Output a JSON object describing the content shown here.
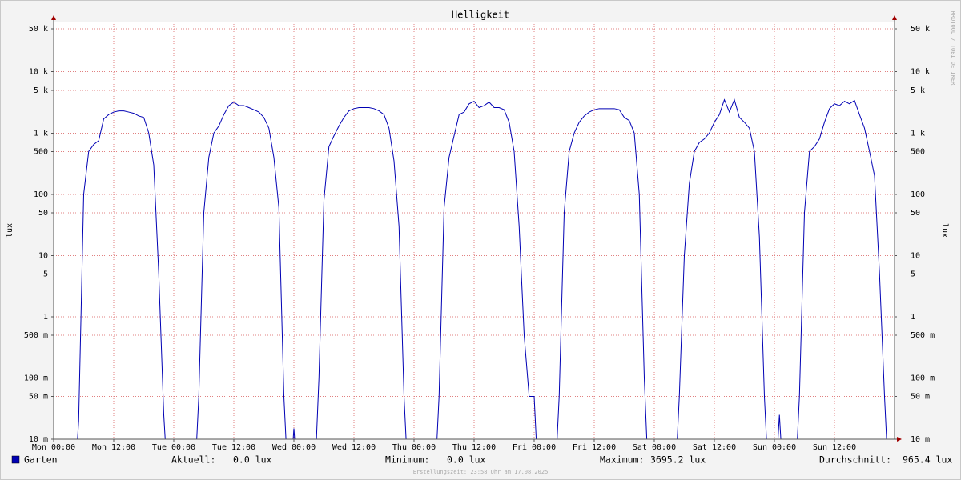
{
  "chart_data": {
    "type": "line",
    "title": "Helligkeit",
    "y_label": "lux",
    "y2_label": "lux",
    "log_scale": true,
    "grid": true,
    "ylim": [
      0.01,
      66000
    ],
    "yticks": [
      {
        "value": 50000,
        "label": "50 k"
      },
      {
        "value": 10000,
        "label": "10 k"
      },
      {
        "value": 5000,
        "label": "5 k"
      },
      {
        "value": 1000,
        "label": "1 k"
      },
      500,
      100,
      50,
      10,
      5,
      1,
      {
        "value": 0.5,
        "label": "500 m"
      },
      {
        "value": 0.1,
        "label": "100 m"
      },
      {
        "value": 0.05,
        "label": "50 m"
      },
      {
        "value": 0.01,
        "label": "10 m"
      }
    ],
    "xlim": [
      0,
      168
    ],
    "xticks": [
      {
        "value": 0,
        "label": "Mon 00:00"
      },
      {
        "value": 12,
        "label": "Mon 12:00"
      },
      {
        "value": 24,
        "label": "Tue 00:00"
      },
      {
        "value": 36,
        "label": "Tue 12:00"
      },
      {
        "value": 48,
        "label": "Wed 00:00"
      },
      {
        "value": 60,
        "label": "Wed 12:00"
      },
      {
        "value": 72,
        "label": "Thu 00:00"
      },
      {
        "value": 84,
        "label": "Thu 12:00"
      },
      {
        "value": 96,
        "label": "Fri 00:00"
      },
      {
        "value": 108,
        "label": "Fri 12:00"
      },
      {
        "value": 120,
        "label": "Sat 00:00"
      },
      {
        "value": 132,
        "label": "Sat 12:00"
      },
      {
        "value": 144,
        "label": "Sun 00:00"
      },
      {
        "value": 156,
        "label": "Sun 12:00"
      }
    ],
    "x": [
      0,
      1,
      2,
      3,
      4,
      5,
      6,
      7,
      8,
      9,
      10,
      11,
      12,
      13,
      14,
      15,
      16,
      17,
      18,
      19,
      20,
      21,
      22,
      23,
      24,
      25,
      26,
      27,
      28,
      29,
      30,
      31,
      32,
      33,
      34,
      35,
      36,
      37,
      38,
      39,
      40,
      41,
      42,
      43,
      44,
      45,
      46,
      47,
      48,
      49,
      50,
      51,
      52,
      53,
      54,
      55,
      56,
      57,
      58,
      59,
      60,
      61,
      62,
      63,
      64,
      65,
      66,
      67,
      68,
      69,
      70,
      71,
      72,
      73,
      74,
      75,
      76,
      77,
      78,
      79,
      80,
      81,
      82,
      83,
      84,
      85,
      86,
      87,
      88,
      89,
      90,
      91,
      92,
      93,
      94,
      95,
      96,
      97,
      98,
      99,
      100,
      101,
      102,
      103,
      104,
      105,
      106,
      107,
      108,
      109,
      110,
      111,
      112,
      113,
      114,
      115,
      116,
      117,
      118,
      119,
      120,
      121,
      122,
      123,
      124,
      125,
      126,
      127,
      128,
      129,
      130,
      131,
      132,
      133,
      134,
      135,
      136,
      137,
      138,
      139,
      140,
      141,
      142,
      143,
      144,
      145,
      146,
      147,
      148,
      149,
      150,
      151,
      152,
      153,
      154,
      155,
      156,
      157,
      158,
      159,
      160,
      161,
      162,
      163,
      164,
      165,
      166,
      167,
      168
    ],
    "series": [
      {
        "name": "Garten",
        "color": "#0000b4",
        "values": [
          0,
          0,
          0,
          0,
          0,
          0.02,
          100,
          500,
          650,
          750,
          1700,
          2000,
          2200,
          2300,
          2300,
          2200,
          2100,
          1900,
          1800,
          1000,
          300,
          5,
          0.025,
          0,
          0,
          0,
          0,
          0,
          0,
          0.05,
          50,
          400,
          1000,
          1300,
          2000,
          2800,
          3200,
          2800,
          2800,
          2600,
          2400,
          2200,
          1800,
          1200,
          400,
          60,
          0.05,
          0,
          0.015,
          0,
          0,
          0,
          0,
          0.1,
          80,
          600,
          900,
          1300,
          1800,
          2300,
          2500,
          2600,
          2600,
          2600,
          2500,
          2300,
          2000,
          1200,
          350,
          30,
          0.05,
          0,
          0,
          0,
          0,
          0,
          0,
          0.05,
          60,
          400,
          900,
          2000,
          2200,
          3000,
          3300,
          2600,
          2800,
          3200,
          2600,
          2600,
          2400,
          1500,
          500,
          30,
          0.5,
          0.05,
          0.05,
          0,
          0,
          0,
          0,
          0.05,
          50,
          500,
          1000,
          1500,
          1900,
          2200,
          2400,
          2500,
          2500,
          2500,
          2500,
          2400,
          1800,
          1600,
          1000,
          100,
          0.1,
          0,
          0,
          0,
          0,
          0,
          0,
          0.05,
          10,
          150,
          500,
          700,
          800,
          1000,
          1500,
          2000,
          3500,
          2200,
          3500,
          1800,
          1500,
          1200,
          500,
          20,
          0.05,
          0,
          0,
          0.025,
          0,
          0,
          0,
          0.05,
          50,
          500,
          600,
          800,
          1500,
          2500,
          3000,
          2800,
          3300,
          3000,
          3400,
          2000,
          1200,
          500,
          200,
          5,
          0.05,
          0,
          0
        ]
      }
    ],
    "stats": [
      {
        "label": "Aktuell:",
        "text": "0.0 lux"
      },
      {
        "label": "Minimum:",
        "text": "0.0 lux"
      },
      {
        "label": "Maximum:",
        "text": "3695.2 lux"
      },
      {
        "label": "Durchschnitt:",
        "text": "965.4 lux"
      }
    ],
    "footer": "Erstellungszeit: 23:58 Uhr am 17.08.2025",
    "watermark": "RRDTOOL / TOBI OETIKER"
  }
}
